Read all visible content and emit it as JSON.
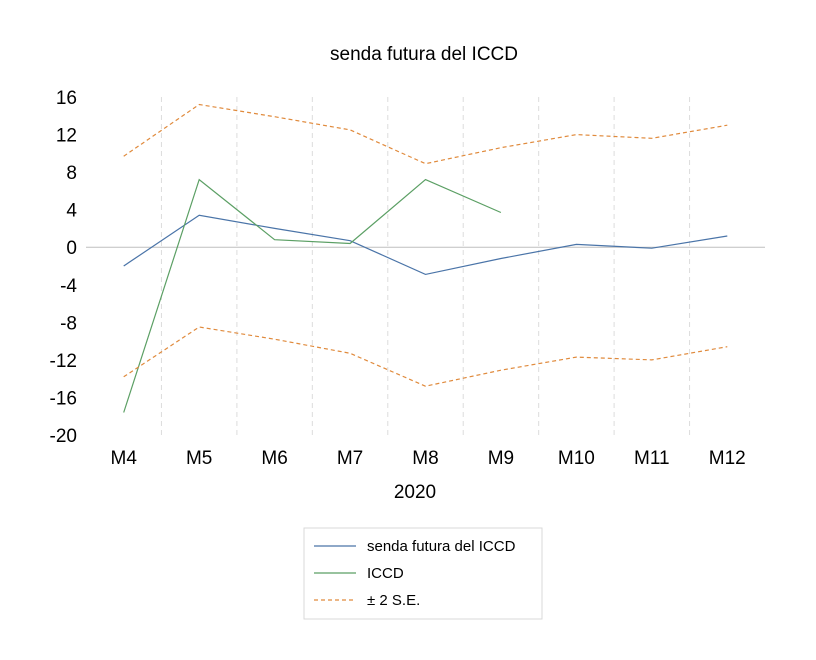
{
  "chart_data": {
    "type": "line",
    "title": "senda futura del ICCD",
    "xlabel": "2020",
    "ylabel": "",
    "categories": [
      "M4",
      "M5",
      "M6",
      "M7",
      "M8",
      "M9",
      "M10",
      "M11",
      "M12"
    ],
    "ylim": [
      -20,
      16
    ],
    "yticks": [
      16,
      12,
      8,
      4,
      0,
      -4,
      -8,
      -12,
      -16,
      -20
    ],
    "ytick_labels": [
      "16",
      "12",
      "8",
      "4",
      "0",
      "-4",
      "-8",
      "-12",
      "-16",
      "-20"
    ],
    "vertical_gridlines": true,
    "legend_position": "bottom-center",
    "series": [
      {
        "name": "senda futura del ICCD",
        "color": "#4a74a8",
        "style": "solid",
        "values": [
          -2.0,
          3.4,
          2.0,
          0.7,
          -2.9,
          -1.2,
          0.3,
          -0.1,
          1.2
        ]
      },
      {
        "name": "ICCD",
        "color": "#5b9f64",
        "style": "solid",
        "values": [
          -17.6,
          7.2,
          0.8,
          0.4,
          7.2,
          3.7,
          null,
          null,
          null
        ]
      },
      {
        "name": "± 2 S.E.",
        "color": "#e08a3c",
        "style": "dashed",
        "values": [
          9.7,
          15.2,
          13.9,
          12.5,
          8.9,
          10.6,
          12.0,
          11.6,
          13.0
        ]
      },
      {
        "name": "",
        "color": "#e08a3c",
        "style": "dashed",
        "legend": false,
        "values": [
          -13.8,
          -8.5,
          -9.8,
          -11.3,
          -14.8,
          -13.1,
          -11.7,
          -12.0,
          -10.6
        ]
      }
    ]
  }
}
